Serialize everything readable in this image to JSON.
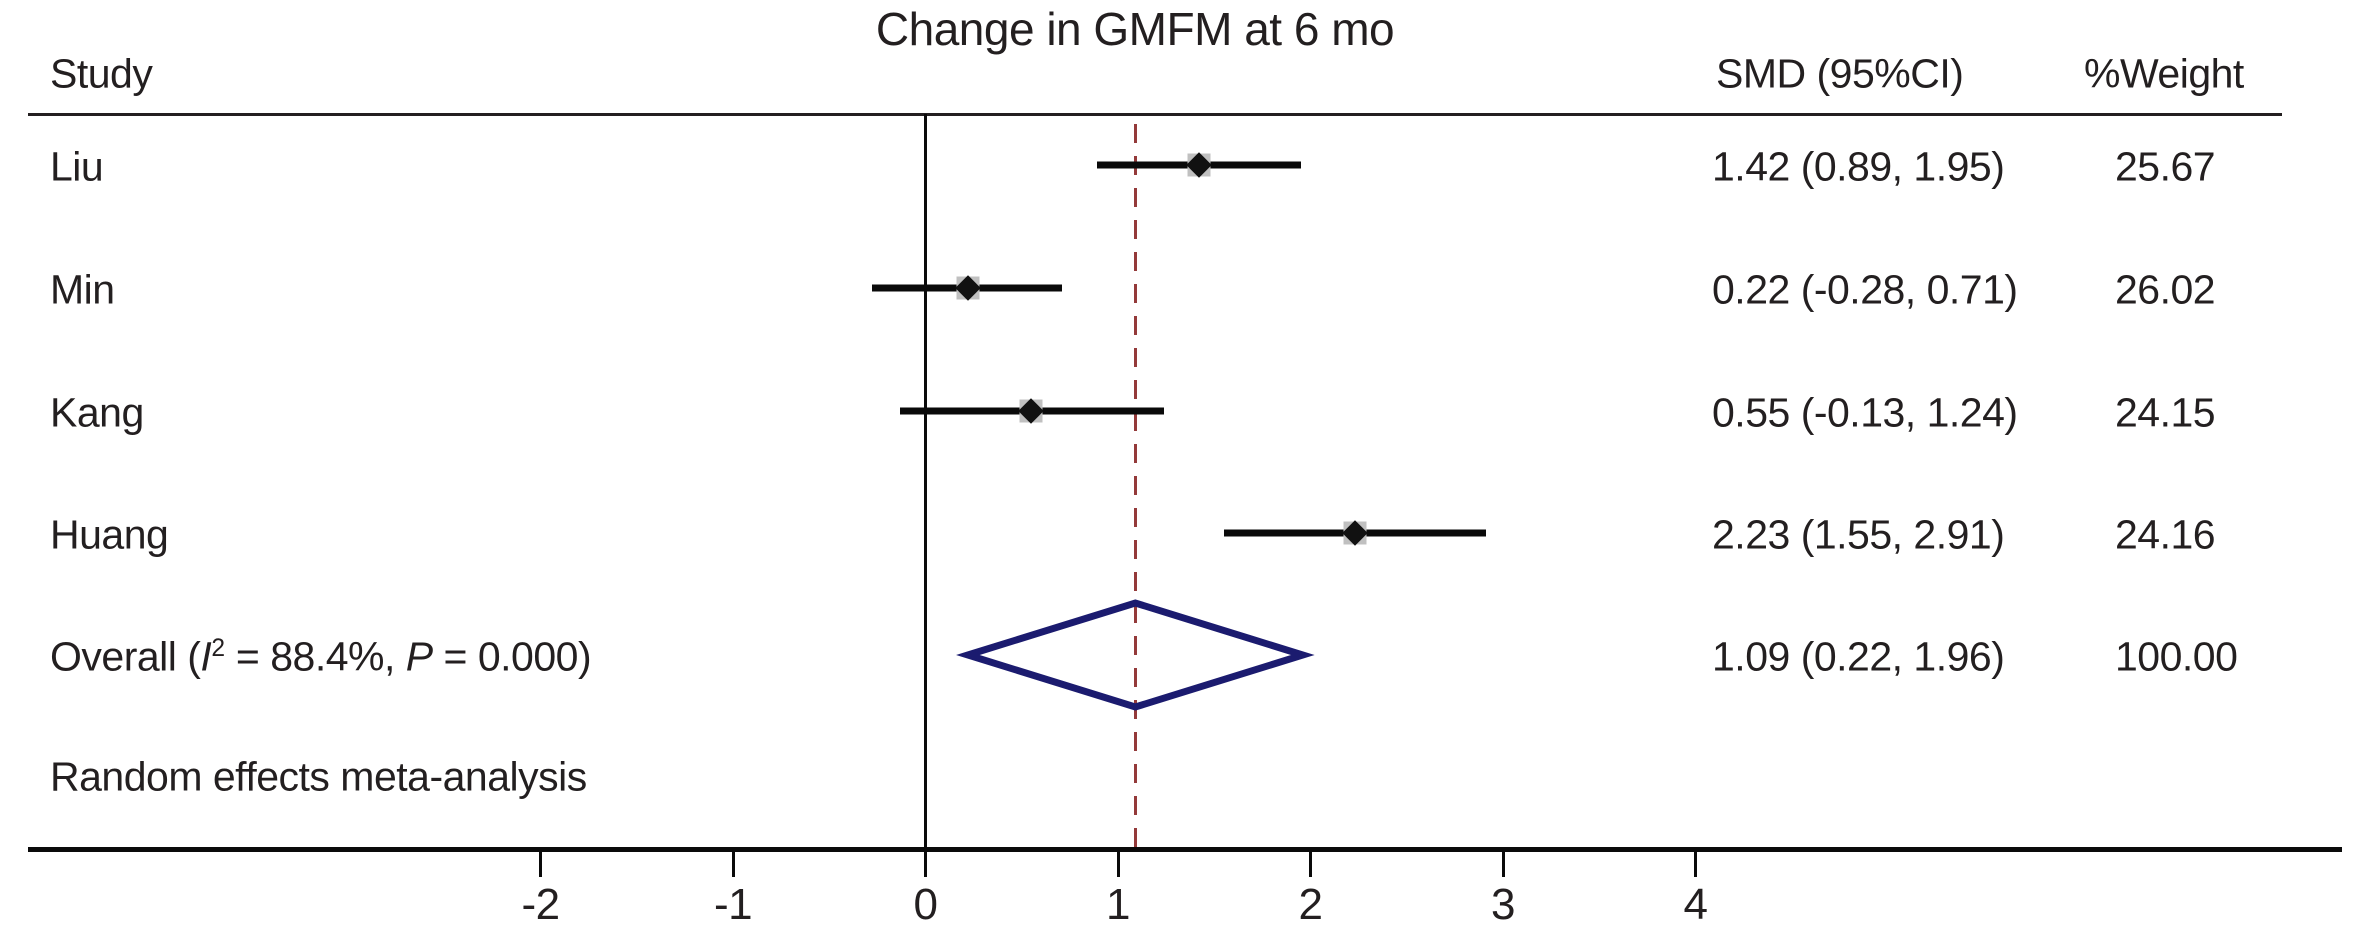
{
  "chart_data": {
    "type": "forest",
    "title": "Change in GMFM at 6 mo",
    "columns": {
      "study": "Study",
      "smd": "SMD (95%CI)",
      "weight": "%Weight"
    },
    "studies": [
      {
        "label": "Liu",
        "smd": 1.42,
        "lo": 0.89,
        "hi": 1.95,
        "ci_text": "1.42 (0.89, 1.95)",
        "weight": 25.67,
        "weight_text": "25.67"
      },
      {
        "label": "Min",
        "smd": 0.22,
        "lo": -0.28,
        "hi": 0.71,
        "ci_text": "0.22 (-0.28, 0.71)",
        "weight": 26.02,
        "weight_text": "26.02"
      },
      {
        "label": "Kang",
        "smd": 0.55,
        "lo": -0.13,
        "hi": 1.24,
        "ci_text": "0.55 (-0.13, 1.24)",
        "weight": 24.15,
        "weight_text": "24.15"
      },
      {
        "label": "Huang",
        "smd": 2.23,
        "lo": 1.55,
        "hi": 2.91,
        "ci_text": "2.23 (1.55, 2.91)",
        "weight": 24.16,
        "weight_text": "24.16"
      }
    ],
    "overall": {
      "label_prefix": "Overall (",
      "i_symbol": "I",
      "i_exp": "2",
      "label_mid": " = 88.4%, ",
      "p_symbol": "P",
      "label_suffix": " = 0.000)",
      "smd": 1.09,
      "lo": 0.22,
      "hi": 1.96,
      "ci_text": "1.09 (0.22, 1.96)",
      "weight": 100.0,
      "weight_text": "100.00",
      "i_squared": "88.4%",
      "p_value": "0.000"
    },
    "note": "Random effects meta-analysis",
    "x_axis": {
      "ticks": [
        -2,
        -1,
        0,
        1,
        2,
        3,
        4
      ],
      "xlim": [
        -2.9,
        7.4
      ],
      "zero_line_at": 0,
      "dashed_line_at": 1.09
    },
    "model": "random-effects",
    "colors": {
      "text": "#231f20",
      "line": "#0a0a0a",
      "diamond_outline": "#1b1b6f",
      "dashed_line": "#943a3a",
      "weight_box": "#c0c0c0",
      "point_marker": "#111111"
    }
  }
}
